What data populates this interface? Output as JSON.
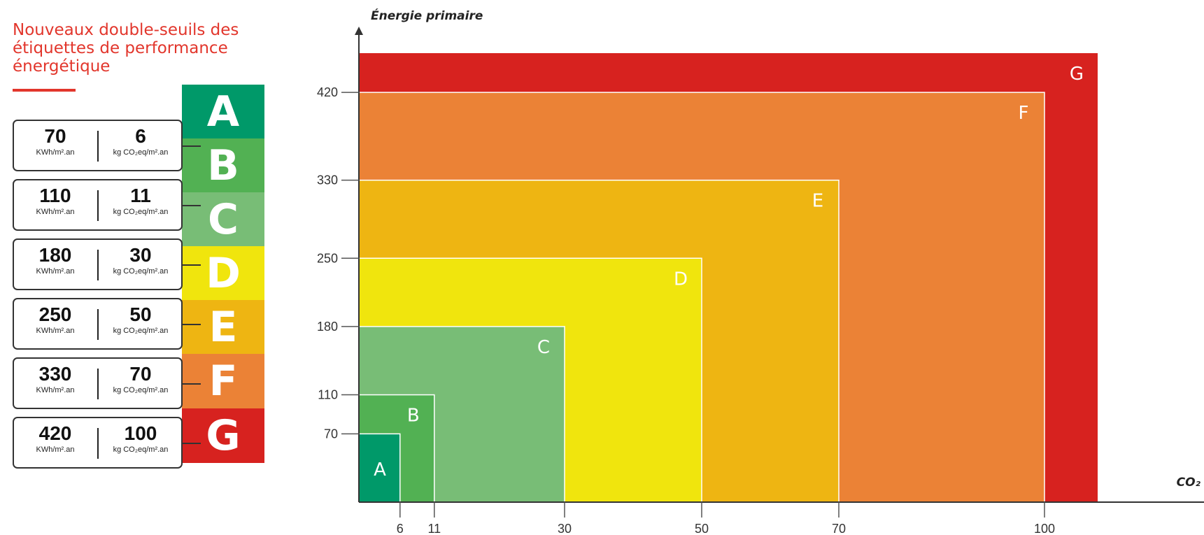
{
  "title": "Nouveaux double-seuils des étiquettes de performance énergétique",
  "colors": {
    "title": "#e2362c",
    "A": "#009969",
    "B": "#52b153",
    "C": "#78bd76",
    "D": "#f0e50d",
    "E": "#eeb512",
    "F": "#eb8236",
    "G": "#d7221f"
  },
  "badges": [
    "A",
    "B",
    "C",
    "D",
    "E",
    "F",
    "G"
  ],
  "thresholds": [
    {
      "energy": "70",
      "co2": "6",
      "energy_unit": "KWh/m².an",
      "co2_unit": "kg CO₂eq/m².an"
    },
    {
      "energy": "110",
      "co2": "11",
      "energy_unit": "KWh/m².an",
      "co2_unit": "kg CO₂eq/m².an"
    },
    {
      "energy": "180",
      "co2": "30",
      "energy_unit": "KWh/m².an",
      "co2_unit": "kg CO₂eq/m².an"
    },
    {
      "energy": "250",
      "co2": "50",
      "energy_unit": "KWh/m².an",
      "co2_unit": "kg CO₂eq/m².an"
    },
    {
      "energy": "330",
      "co2": "70",
      "energy_unit": "KWh/m².an",
      "co2_unit": "kg CO₂eq/m².an"
    },
    {
      "energy": "420",
      "co2": "100",
      "energy_unit": "KWh/m².an",
      "co2_unit": "kg CO₂eq/m².an"
    }
  ],
  "chart_data": {
    "type": "area",
    "ylabel": "Énergie primaire",
    "xlabel": "CO₂",
    "x_ticks": [
      6,
      11,
      30,
      50,
      70,
      100
    ],
    "y_ticks": [
      70,
      110,
      180,
      250,
      330,
      420
    ],
    "classes": [
      {
        "label": "G",
        "co2_max": null,
        "energy_max": null,
        "color": "#d7221f"
      },
      {
        "label": "F",
        "co2_max": 100,
        "energy_max": 420,
        "color": "#eb8236"
      },
      {
        "label": "E",
        "co2_max": 70,
        "energy_max": 330,
        "color": "#eeb512"
      },
      {
        "label": "D",
        "co2_max": 50,
        "energy_max": 250,
        "color": "#f0e50d"
      },
      {
        "label": "C",
        "co2_max": 30,
        "energy_max": 180,
        "color": "#78bd76"
      },
      {
        "label": "B",
        "co2_max": 11,
        "energy_max": 110,
        "color": "#52b153"
      },
      {
        "label": "A",
        "co2_max": 6,
        "energy_max": 70,
        "color": "#009969"
      }
    ]
  }
}
